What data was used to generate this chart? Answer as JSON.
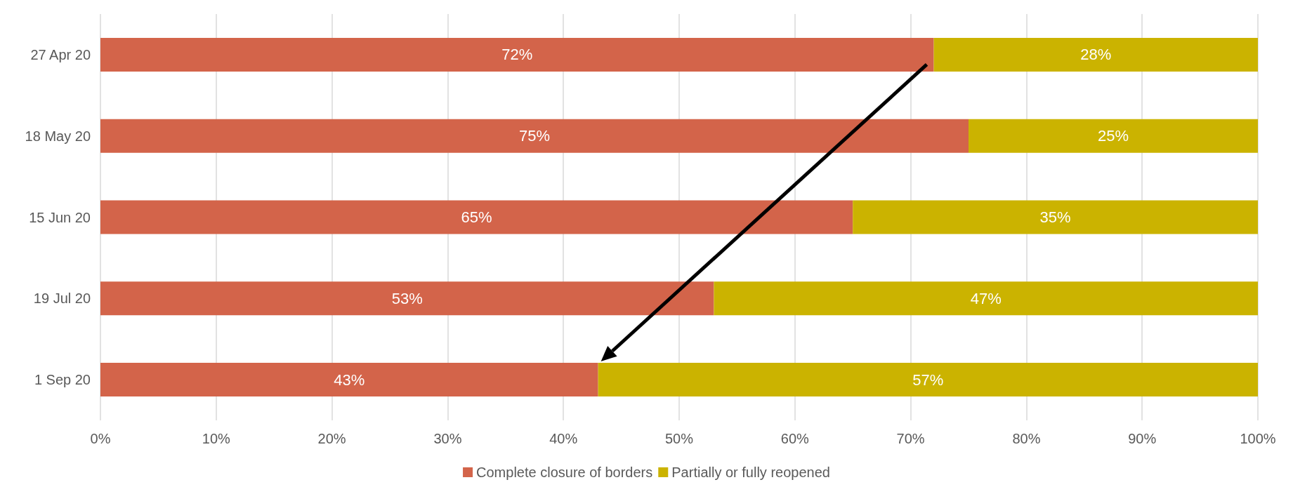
{
  "chart_data": {
    "type": "bar",
    "orientation": "horizontal",
    "stacked": true,
    "categories": [
      "27 Apr 20",
      "18 May 20",
      "15 Jun 20",
      "19 Jul 20",
      "1 Sep 20"
    ],
    "series": [
      {
        "name": "Complete closure of borders",
        "color": "#d3644a",
        "values": [
          72,
          75,
          65,
          53,
          43
        ],
        "value_labels": [
          "72%",
          "75%",
          "65%",
          "53%",
          "43%"
        ]
      },
      {
        "name": "Partially or fully reopened",
        "color": "#cbb300",
        "values": [
          28,
          25,
          35,
          47,
          57
        ],
        "value_labels": [
          "28%",
          "25%",
          "35%",
          "47%",
          "57%"
        ]
      }
    ],
    "xlim": [
      0,
      100
    ],
    "xticks": [
      {
        "value": 0,
        "label": "0%"
      },
      {
        "value": 10,
        "label": "10%"
      },
      {
        "value": 20,
        "label": "20%"
      },
      {
        "value": 30,
        "label": "30%"
      },
      {
        "value": 40,
        "label": "40%"
      },
      {
        "value": 50,
        "label": "50%"
      },
      {
        "value": 60,
        "label": "60%"
      },
      {
        "value": 70,
        "label": "70%"
      },
      {
        "value": 80,
        "label": "80%"
      },
      {
        "value": 90,
        "label": "90%"
      },
      {
        "value": 100,
        "label": "100%"
      }
    ],
    "grid": "x",
    "legend": "bottom"
  }
}
